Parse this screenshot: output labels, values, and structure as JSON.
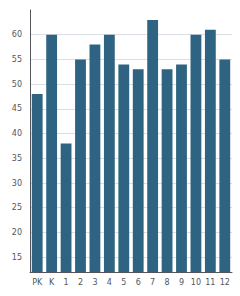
{
  "chart_data": {
    "type": "bar",
    "categories": [
      "PK",
      "K",
      "1",
      "2",
      "3",
      "4",
      "5",
      "6",
      "7",
      "8",
      "9",
      "10",
      "11",
      "12"
    ],
    "values": [
      48,
      60,
      38,
      55,
      58,
      60,
      54,
      53,
      63,
      53,
      54,
      60,
      61,
      55
    ],
    "color": "#2e6482",
    "ylim": [
      12,
      65
    ],
    "yticks": [
      15,
      20,
      25,
      30,
      35,
      40,
      45,
      50,
      55,
      60
    ],
    "grid": true
  }
}
